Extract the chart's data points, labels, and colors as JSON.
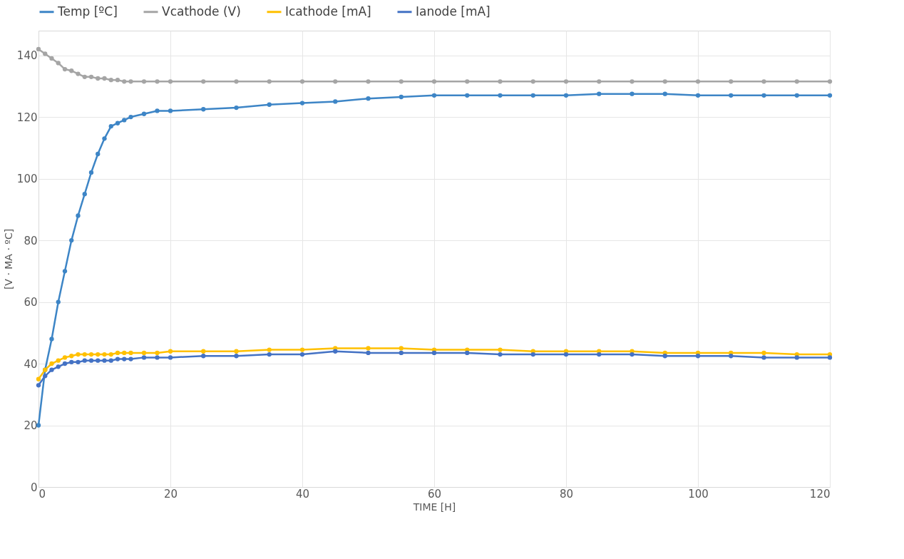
{
  "chart_data": {
    "type": "line",
    "xlabel": "TIME [H]",
    "ylabel": "[V · MA · ºC]",
    "x": [
      0,
      1,
      2,
      3,
      4,
      5,
      6,
      7,
      8,
      9,
      10,
      11,
      12,
      13,
      14,
      16,
      18,
      20,
      25,
      30,
      35,
      40,
      45,
      50,
      55,
      60,
      65,
      70,
      75,
      80,
      85,
      90,
      95,
      100,
      105,
      110,
      115,
      120
    ],
    "series": [
      {
        "name": "Temp [ºC]",
        "color": "#3d85c6",
        "values": [
          20,
          38,
          48,
          60,
          70,
          80,
          88,
          95,
          102,
          108,
          113,
          117,
          118,
          119,
          120,
          121,
          122,
          122,
          122.5,
          123,
          124,
          124.5,
          125,
          126,
          126.5,
          127,
          127,
          127,
          127,
          127,
          127.5,
          127.5,
          127.5,
          127,
          127,
          127,
          127,
          127
        ]
      },
      {
        "name": "Vcathode (V)",
        "color": "#a5a5a5",
        "values": [
          142,
          140.5,
          139,
          137.5,
          135.5,
          135,
          134,
          133,
          133,
          132.5,
          132.5,
          132,
          132,
          131.5,
          131.5,
          131.5,
          131.5,
          131.5,
          131.5,
          131.5,
          131.5,
          131.5,
          131.5,
          131.5,
          131.5,
          131.5,
          131.5,
          131.5,
          131.5,
          131.5,
          131.5,
          131.5,
          131.5,
          131.5,
          131.5,
          131.5,
          131.5,
          131.5
        ]
      },
      {
        "name": "Icathode [mA]",
        "color": "#ffc000",
        "values": [
          35,
          38,
          40,
          41,
          42,
          42.5,
          43,
          43,
          43,
          43,
          43,
          43,
          43.5,
          43.5,
          43.5,
          43.5,
          43.5,
          44,
          44,
          44,
          44.5,
          44.5,
          45,
          45,
          45,
          44.5,
          44.5,
          44.5,
          44,
          44,
          44,
          44,
          43.5,
          43.5,
          43.5,
          43.5,
          43,
          43
        ]
      },
      {
        "name": "Ianode [mA]",
        "color": "#4472c4",
        "values": [
          33,
          36,
          38,
          39,
          40,
          40.5,
          40.5,
          41,
          41,
          41,
          41,
          41,
          41.5,
          41.5,
          41.5,
          42,
          42,
          42,
          42.5,
          42.5,
          43,
          43,
          44,
          43.5,
          43.5,
          43.5,
          43.5,
          43,
          43,
          43,
          43,
          43,
          42.5,
          42.5,
          42.5,
          42,
          42,
          42
        ]
      }
    ],
    "xlim": [
      0,
      120
    ],
    "xticks": [
      0,
      20,
      40,
      60,
      80,
      100,
      120
    ],
    "ylim": [
      0,
      148
    ],
    "yticks": [
      0,
      20,
      40,
      60,
      80,
      100,
      120,
      140
    ],
    "grid": true,
    "legend": "top",
    "marker": "circle",
    "line_style": "solid"
  }
}
